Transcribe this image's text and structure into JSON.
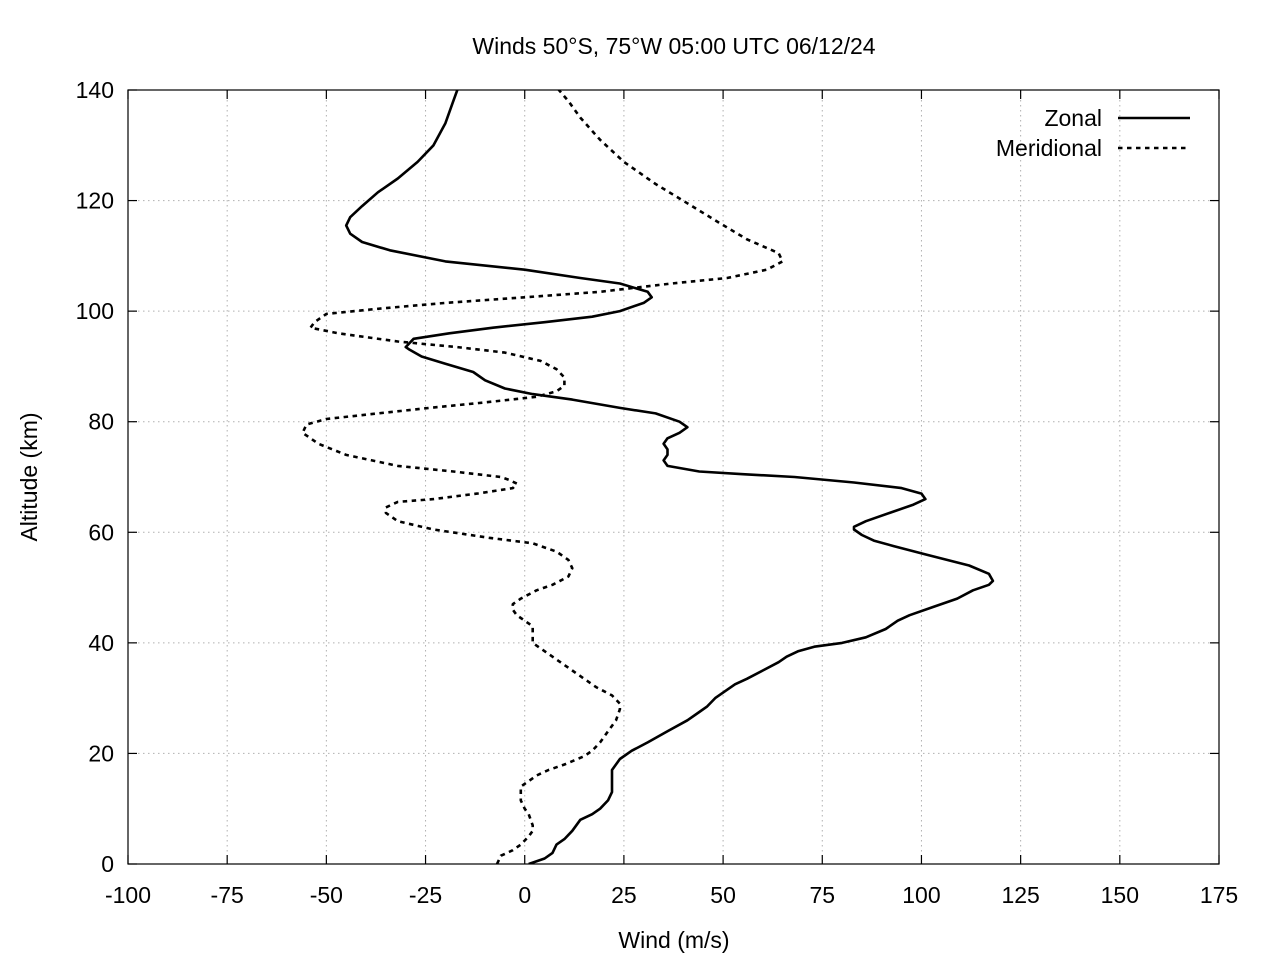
{
  "chart_data": {
    "type": "line",
    "title": "Winds 50°S, 75°W 05:00 UTC 06/12/24",
    "xlabel": "Wind (m/s)",
    "ylabel": "Altitude (km)",
    "xlim": [
      -100,
      175
    ],
    "ylim": [
      0,
      140
    ],
    "xticks": [
      -100,
      -75,
      -50,
      -25,
      0,
      25,
      50,
      75,
      100,
      125,
      150,
      175
    ],
    "yticks": [
      0,
      20,
      40,
      60,
      80,
      100,
      120,
      140
    ],
    "grid": true,
    "legend_position": "top-right",
    "series": [
      {
        "name": "Zonal",
        "line_style": "solid",
        "color": "#000000",
        "points": [
          [
            1,
            0
          ],
          [
            5,
            1
          ],
          [
            7,
            2
          ],
          [
            8,
            3.5
          ],
          [
            10,
            4.5
          ],
          [
            12,
            6
          ],
          [
            13,
            7
          ],
          [
            14,
            8
          ],
          [
            17,
            9
          ],
          [
            19,
            10
          ],
          [
            21,
            11.5
          ],
          [
            22,
            13
          ],
          [
            22,
            15
          ],
          [
            22,
            17
          ],
          [
            24,
            19
          ],
          [
            27,
            20.5
          ],
          [
            31,
            22
          ],
          [
            36,
            24
          ],
          [
            41,
            26
          ],
          [
            44,
            27.5
          ],
          [
            46,
            28.5
          ],
          [
            48,
            30
          ],
          [
            50,
            31
          ],
          [
            53,
            32.5
          ],
          [
            56,
            33.5
          ],
          [
            60,
            35
          ],
          [
            64,
            36.5
          ],
          [
            66,
            37.5
          ],
          [
            69,
            38.5
          ],
          [
            73,
            39.3
          ],
          [
            80,
            40
          ],
          [
            86,
            41
          ],
          [
            91,
            42.5
          ],
          [
            94,
            44
          ],
          [
            97,
            45
          ],
          [
            103,
            46.5
          ],
          [
            109,
            48
          ],
          [
            113,
            49.5
          ],
          [
            117,
            50.5
          ],
          [
            118,
            51.2
          ],
          [
            117,
            52.5
          ],
          [
            112,
            54
          ],
          [
            101,
            56
          ],
          [
            93,
            57.5
          ],
          [
            88,
            58.5
          ],
          [
            85,
            59.5
          ],
          [
            83,
            60.5
          ],
          [
            83,
            61
          ],
          [
            86,
            62
          ],
          [
            92,
            63.5
          ],
          [
            98,
            65
          ],
          [
            101,
            66
          ],
          [
            100,
            67
          ],
          [
            95,
            68
          ],
          [
            83,
            69
          ],
          [
            68,
            70
          ],
          [
            55,
            70.5
          ],
          [
            44,
            71
          ],
          [
            36,
            72
          ],
          [
            35,
            73
          ],
          [
            36,
            74
          ],
          [
            36,
            75
          ],
          [
            35,
            76
          ],
          [
            36,
            77
          ],
          [
            39,
            78
          ],
          [
            41,
            79
          ],
          [
            39,
            80
          ],
          [
            33,
            81.5
          ],
          [
            24,
            82.5
          ],
          [
            12,
            84
          ],
          [
            2,
            85
          ],
          [
            -5,
            86
          ],
          [
            -10,
            87.5
          ],
          [
            -13,
            89
          ],
          [
            -20,
            90.5
          ],
          [
            -26,
            91.8
          ],
          [
            -29,
            93
          ],
          [
            -30,
            93.5
          ],
          [
            -28,
            95
          ],
          [
            -19,
            96
          ],
          [
            -8,
            97
          ],
          [
            5,
            98
          ],
          [
            17,
            99
          ],
          [
            24,
            100
          ],
          [
            30,
            101.5
          ],
          [
            32,
            102.5
          ],
          [
            31,
            103.5
          ],
          [
            24,
            105
          ],
          [
            14,
            106
          ],
          [
            0,
            107.5
          ],
          [
            -20,
            109
          ],
          [
            -34,
            111
          ],
          [
            -41,
            112.5
          ],
          [
            -44,
            114
          ],
          [
            -45,
            115.5
          ],
          [
            -44,
            117
          ],
          [
            -41,
            119
          ],
          [
            -37,
            121.5
          ],
          [
            -32,
            124
          ],
          [
            -27,
            127
          ],
          [
            -23,
            130
          ],
          [
            -20,
            134
          ],
          [
            -18,
            138
          ],
          [
            -17,
            140
          ]
        ]
      },
      {
        "name": "Meridional",
        "line_style": "dashed",
        "color": "#000000",
        "points": [
          [
            -7,
            0
          ],
          [
            -6,
            1.5
          ],
          [
            -3,
            2.5
          ],
          [
            -1,
            3.5
          ],
          [
            1,
            5
          ],
          [
            2,
            6
          ],
          [
            2,
            7
          ],
          [
            1,
            9
          ],
          [
            0,
            10
          ],
          [
            -1,
            11.5
          ],
          [
            -1,
            13
          ],
          [
            -1,
            14
          ],
          [
            1,
            15
          ],
          [
            3,
            16
          ],
          [
            6,
            17
          ],
          [
            10,
            18
          ],
          [
            15,
            19.5
          ],
          [
            17,
            20.5
          ],
          [
            19,
            22
          ],
          [
            21,
            24
          ],
          [
            23,
            26
          ],
          [
            24,
            28
          ],
          [
            24,
            29
          ],
          [
            22,
            30.5
          ],
          [
            18,
            32
          ],
          [
            15,
            33.5
          ],
          [
            12,
            35
          ],
          [
            9,
            36.5
          ],
          [
            6,
            38
          ],
          [
            4,
            39
          ],
          [
            2,
            40
          ],
          [
            2,
            42
          ],
          [
            2,
            43
          ],
          [
            0,
            44
          ],
          [
            -2,
            45
          ],
          [
            -3,
            46
          ],
          [
            -3,
            47
          ],
          [
            -1,
            48
          ],
          [
            3,
            49.5
          ],
          [
            7,
            50.5
          ],
          [
            11,
            52
          ],
          [
            12,
            53.5
          ],
          [
            11,
            55
          ],
          [
            8,
            56.5
          ],
          [
            2,
            58
          ],
          [
            -9,
            59
          ],
          [
            -23,
            60.5
          ],
          [
            -32,
            62
          ],
          [
            -35,
            63.5
          ],
          [
            -35,
            64.5
          ],
          [
            -32,
            65.5
          ],
          [
            -23,
            66
          ],
          [
            -12,
            67
          ],
          [
            -3,
            68
          ],
          [
            -2,
            68.8
          ],
          [
            -4,
            69.5
          ],
          [
            -6,
            70
          ],
          [
            -18,
            71
          ],
          [
            -32,
            72
          ],
          [
            -45,
            74
          ],
          [
            -52,
            76
          ],
          [
            -56,
            78
          ],
          [
            -55,
            79.5
          ],
          [
            -50,
            80.5
          ],
          [
            -37,
            81.5
          ],
          [
            -24,
            82.5
          ],
          [
            -10,
            83.5
          ],
          [
            3,
            84.5
          ],
          [
            8,
            85.5
          ],
          [
            10,
            86.5
          ],
          [
            10,
            88
          ],
          [
            8,
            89.5
          ],
          [
            4,
            91
          ],
          [
            -5,
            92.5
          ],
          [
            -17,
            93.5
          ],
          [
            -32,
            94.5
          ],
          [
            -47,
            96
          ],
          [
            -54,
            97
          ],
          [
            -53,
            98
          ],
          [
            -50,
            99.5
          ],
          [
            -36,
            100.5
          ],
          [
            -20,
            101.5
          ],
          [
            0,
            102.5
          ],
          [
            19,
            103.5
          ],
          [
            37,
            105
          ],
          [
            51,
            106
          ],
          [
            61,
            107.5
          ],
          [
            65,
            109
          ],
          [
            64,
            110.5
          ],
          [
            56,
            113
          ],
          [
            49,
            116
          ],
          [
            41,
            119.5
          ],
          [
            33,
            123
          ],
          [
            25,
            127
          ],
          [
            19,
            131
          ],
          [
            14,
            135
          ],
          [
            11,
            138
          ],
          [
            8,
            140.5
          ]
        ]
      }
    ]
  }
}
